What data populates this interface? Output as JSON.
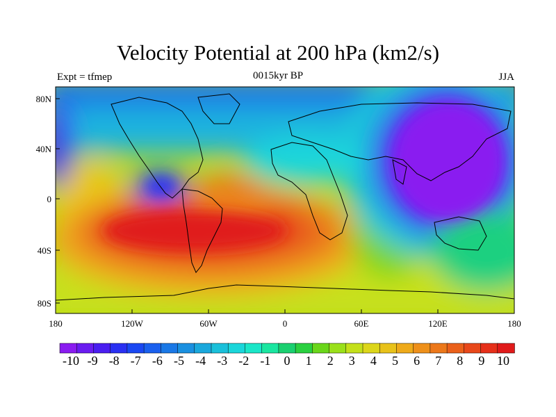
{
  "map": {
    "title": "Velocity Potential at 200 hPa (km2/s)",
    "left_string": "Expt = tfmep",
    "center_string": "0015kyr BP",
    "right_string": "JJA",
    "lon_ticks": [
      "180",
      "120W",
      "60W",
      "0",
      "60E",
      "120E",
      "180"
    ],
    "lat_ticks": [
      "80N",
      "40N",
      "0",
      "40S",
      "80S"
    ]
  },
  "colorbar": {
    "labels": [
      "-10",
      "-9",
      "-8",
      "-7",
      "-6",
      "-5",
      "-4",
      "-3",
      "-2",
      "-1",
      "0",
      "1",
      "2",
      "3",
      "4",
      "5",
      "6",
      "7",
      "8",
      "9",
      "10"
    ],
    "colors": [
      "#8a1cf0",
      "#6a1cf0",
      "#4a1ef0",
      "#2a30f2",
      "#1a48f2",
      "#1a60ee",
      "#1a78e6",
      "#1a90e0",
      "#1aa8dc",
      "#1ac0da",
      "#1ad6da",
      "#1ae6c8",
      "#1ae6a0",
      "#1ad070",
      "#2ad040",
      "#6ad61a",
      "#9ae01a",
      "#c4e01a",
      "#dcd61a",
      "#e8c21a",
      "#eeaa1a",
      "#ee901a",
      "#ec781a",
      "#ea601a",
      "#e8481a",
      "#e6301a",
      "#e01a1a"
    ]
  }
}
